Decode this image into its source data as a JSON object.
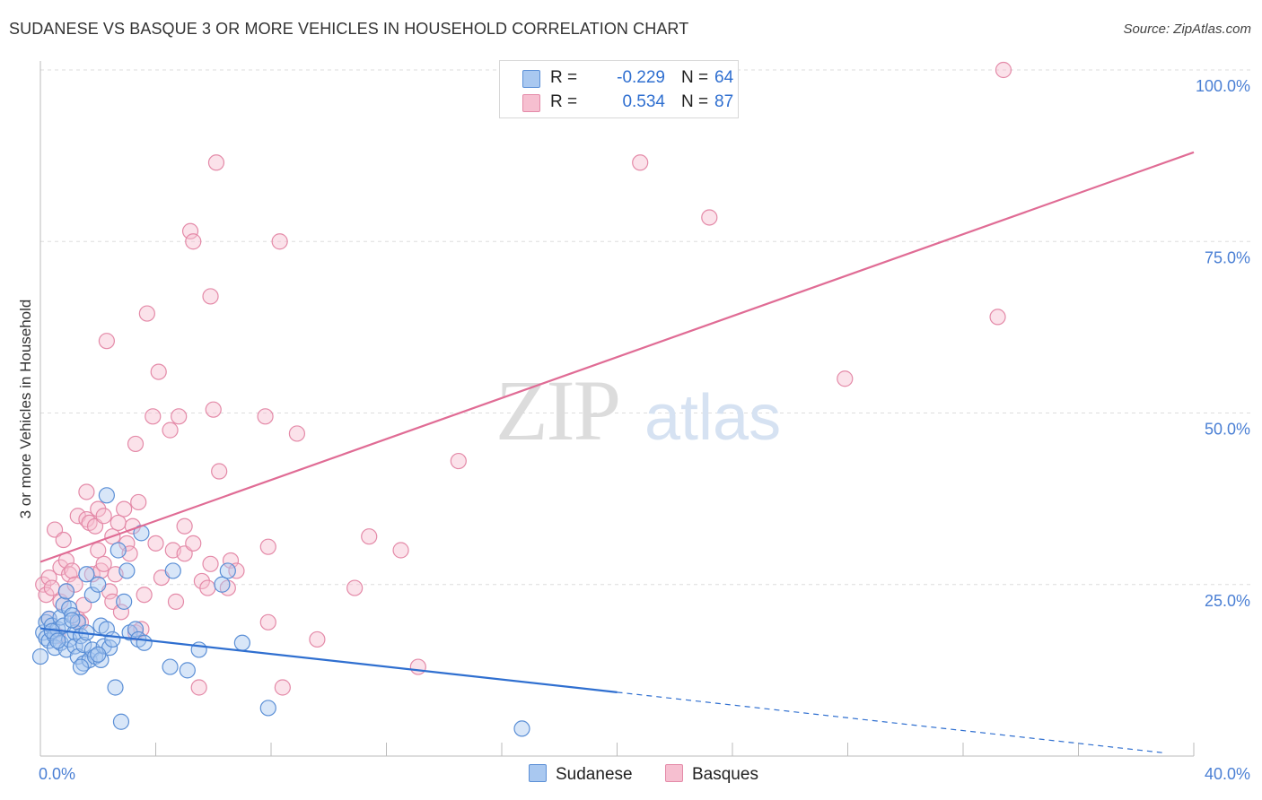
{
  "title": "SUDANESE VS BASQUE 3 OR MORE VEHICLES IN HOUSEHOLD CORRELATION CHART",
  "source": "Source: ZipAtlas.com",
  "watermark": {
    "zip": "ZIP",
    "atlas": "atlas"
  },
  "legend": {
    "r_label": "R =",
    "n_label": "N =",
    "sudanese": {
      "r": "-0.229",
      "n": "64"
    },
    "basques": {
      "r": "0.534",
      "n": "87"
    }
  },
  "colors": {
    "sudanese_fill": "#a9c8f0",
    "sudanese_stroke": "#5b8fd6",
    "sudanese_line": "#2f6fd0",
    "basques_fill": "#f6bfd0",
    "basques_stroke": "#e48aa8",
    "basques_line": "#e06c95",
    "tick_label": "#4a7fd4",
    "grid": "#dddddd"
  },
  "chart_data": {
    "type": "scatter",
    "title": "SUDANESE VS BASQUE 3 OR MORE VEHICLES IN HOUSEHOLD CORRELATION CHART",
    "xlabel": "",
    "ylabel": "3 or more Vehicles in Household",
    "xlim": [
      0,
      40
    ],
    "ylim": [
      0,
      100
    ],
    "x_tick_labels": [
      "0.0%",
      "40.0%"
    ],
    "y_ticks": [
      25,
      50,
      75,
      100
    ],
    "y_tick_labels": [
      "25.0%",
      "50.0%",
      "75.0%",
      "100.0%"
    ],
    "grid": true,
    "series": [
      {
        "name": "Sudanese",
        "r": -0.229,
        "n": 64,
        "trend": {
          "x0": 0,
          "y0": 18.6,
          "x1": 20,
          "y1": 9.3,
          "dashed_to_x": 38.9,
          "dashed_to_y": 0.5
        },
        "points": [
          [
            0.0,
            14.5
          ],
          [
            0.1,
            18.0
          ],
          [
            0.2,
            19.5
          ],
          [
            0.2,
            17.2
          ],
          [
            0.3,
            20.0
          ],
          [
            0.3,
            16.8
          ],
          [
            0.4,
            19.0
          ],
          [
            0.5,
            17.5
          ],
          [
            0.5,
            15.8
          ],
          [
            0.6,
            18.5
          ],
          [
            0.7,
            20.2
          ],
          [
            0.7,
            16.5
          ],
          [
            0.8,
            19.0
          ],
          [
            0.8,
            22.0
          ],
          [
            0.9,
            24.0
          ],
          [
            0.9,
            15.5
          ],
          [
            1.0,
            17.0
          ],
          [
            1.0,
            21.5
          ],
          [
            1.1,
            20.5
          ],
          [
            1.2,
            18.0
          ],
          [
            1.2,
            16.0
          ],
          [
            1.3,
            19.5
          ],
          [
            1.3,
            14.5
          ],
          [
            1.4,
            17.5
          ],
          [
            1.5,
            13.5
          ],
          [
            1.5,
            16.2
          ],
          [
            1.6,
            26.5
          ],
          [
            1.6,
            18.0
          ],
          [
            1.7,
            14.0
          ],
          [
            1.8,
            15.5
          ],
          [
            1.8,
            23.5
          ],
          [
            1.9,
            14.5
          ],
          [
            2.0,
            25.0
          ],
          [
            2.1,
            19.0
          ],
          [
            2.1,
            14.0
          ],
          [
            2.2,
            16.0
          ],
          [
            2.3,
            38.0
          ],
          [
            2.3,
            18.5
          ],
          [
            2.4,
            15.8
          ],
          [
            2.5,
            17.0
          ],
          [
            2.6,
            10.0
          ],
          [
            2.7,
            30.0
          ],
          [
            2.8,
            5.0
          ],
          [
            2.9,
            22.5
          ],
          [
            3.0,
            27.0
          ],
          [
            3.1,
            18.0
          ],
          [
            3.3,
            18.5
          ],
          [
            3.4,
            17.0
          ],
          [
            3.5,
            32.5
          ],
          [
            3.6,
            16.5
          ],
          [
            4.5,
            13.0
          ],
          [
            4.6,
            27.0
          ],
          [
            5.1,
            12.5
          ],
          [
            5.5,
            15.5
          ],
          [
            6.3,
            25.0
          ],
          [
            6.5,
            27.0
          ],
          [
            7.0,
            16.5
          ],
          [
            7.9,
            7.0
          ],
          [
            1.4,
            13.0
          ],
          [
            0.4,
            18.2
          ],
          [
            0.6,
            16.8
          ],
          [
            1.1,
            19.8
          ],
          [
            2.0,
            14.8
          ],
          [
            16.7,
            4.0
          ]
        ]
      },
      {
        "name": "Basques",
        "r": 0.534,
        "n": 87,
        "trend": {
          "x0": 0,
          "y0": 28.3,
          "x1": 40,
          "y1": 88.0
        },
        "points": [
          [
            0.1,
            25.0
          ],
          [
            0.2,
            23.5
          ],
          [
            0.3,
            20.0
          ],
          [
            0.3,
            26.0
          ],
          [
            0.4,
            24.5
          ],
          [
            0.5,
            33.0
          ],
          [
            0.6,
            17.5
          ],
          [
            0.7,
            27.5
          ],
          [
            0.7,
            22.5
          ],
          [
            0.8,
            31.5
          ],
          [
            0.9,
            28.5
          ],
          [
            0.9,
            24.0
          ],
          [
            1.0,
            26.5
          ],
          [
            1.1,
            27.0
          ],
          [
            1.2,
            25.0
          ],
          [
            1.3,
            35.0
          ],
          [
            1.3,
            20.0
          ],
          [
            1.4,
            19.5
          ],
          [
            1.5,
            22.0
          ],
          [
            1.6,
            38.5
          ],
          [
            1.6,
            34.5
          ],
          [
            1.7,
            34.0
          ],
          [
            1.8,
            26.5
          ],
          [
            1.9,
            33.5
          ],
          [
            2.0,
            36.0
          ],
          [
            2.0,
            30.0
          ],
          [
            2.1,
            27.0
          ],
          [
            2.2,
            35.0
          ],
          [
            2.2,
            28.0
          ],
          [
            2.3,
            60.5
          ],
          [
            2.4,
            24.0
          ],
          [
            2.5,
            32.0
          ],
          [
            2.5,
            22.5
          ],
          [
            2.6,
            26.5
          ],
          [
            2.7,
            34.0
          ],
          [
            2.8,
            21.0
          ],
          [
            2.9,
            36.0
          ],
          [
            3.0,
            31.0
          ],
          [
            3.1,
            29.5
          ],
          [
            3.2,
            33.5
          ],
          [
            3.3,
            18.0
          ],
          [
            3.3,
            45.5
          ],
          [
            3.4,
            37.0
          ],
          [
            3.6,
            23.5
          ],
          [
            3.7,
            64.5
          ],
          [
            3.9,
            49.5
          ],
          [
            4.0,
            31.0
          ],
          [
            4.1,
            56.0
          ],
          [
            4.2,
            26.0
          ],
          [
            4.5,
            47.5
          ],
          [
            4.6,
            30.0
          ],
          [
            4.7,
            22.5
          ],
          [
            4.8,
            49.5
          ],
          [
            5.0,
            33.5
          ],
          [
            5.0,
            29.5
          ],
          [
            5.2,
            76.5
          ],
          [
            5.3,
            75.0
          ],
          [
            5.3,
            31.0
          ],
          [
            5.5,
            10.0
          ],
          [
            5.6,
            25.5
          ],
          [
            5.9,
            67.0
          ],
          [
            5.9,
            28.0
          ],
          [
            6.0,
            50.5
          ],
          [
            6.1,
            86.5
          ],
          [
            6.2,
            41.5
          ],
          [
            6.6,
            28.5
          ],
          [
            6.8,
            27.0
          ],
          [
            7.8,
            49.5
          ],
          [
            7.9,
            30.5
          ],
          [
            7.9,
            19.5
          ],
          [
            8.3,
            75.0
          ],
          [
            8.4,
            10.0
          ],
          [
            8.9,
            47.0
          ],
          [
            9.6,
            17.0
          ],
          [
            10.9,
            24.5
          ],
          [
            11.4,
            32.0
          ],
          [
            12.5,
            30.0
          ],
          [
            13.1,
            13.0
          ],
          [
            14.5,
            43.0
          ],
          [
            20.8,
            86.5
          ],
          [
            23.2,
            78.5
          ],
          [
            27.9,
            55.0
          ],
          [
            33.2,
            64.0
          ],
          [
            33.4,
            100.0
          ],
          [
            3.5,
            18.5
          ],
          [
            6.5,
            24.5
          ],
          [
            5.8,
            24.5
          ]
        ]
      }
    ]
  }
}
